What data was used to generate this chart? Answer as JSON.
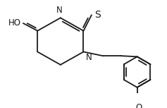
{
  "bg_color": "#ffffff",
  "line_color": "#1a1a1a",
  "line_width": 1.3,
  "font_size": 8.5,
  "xlim": [
    -1.3,
    2.55
  ],
  "ylim": [
    -1.05,
    1.25
  ]
}
